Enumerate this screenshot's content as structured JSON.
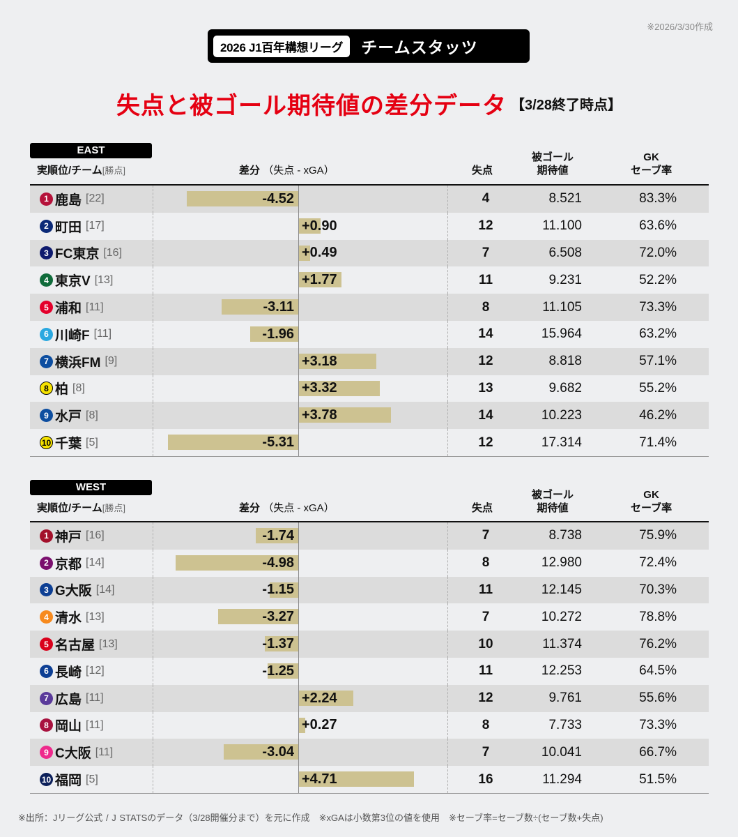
{
  "created_note": "※2026/3/30作成",
  "banner": {
    "league": "2026 J1百年構想リーグ",
    "label": "チームスタッツ"
  },
  "title": {
    "main": "失点と被ゴール期待値の差分データ",
    "sub": "【3/28終了時点】"
  },
  "columns": {
    "team": "実順位/チーム",
    "team_sub": "[勝点]",
    "diff": "差分",
    "diff_sub": "（失点 - xGA）",
    "ga": "失点",
    "xga_line1": "被ゴール",
    "xga_line2": "期待値",
    "save_line1": "GK",
    "save_line2": "セーブ率"
  },
  "colors": {
    "bar": "#cdc291",
    "title_red": "#e50012",
    "row_shade": "#dcdcdc",
    "background": "#eeeff1"
  },
  "east": {
    "label": "EAST",
    "teams": [
      {
        "rank": "1",
        "name": "鹿島",
        "points": "[22]",
        "badge": "#b5123a",
        "diff": -4.52,
        "diff_label": "-4.52",
        "ga": "4",
        "xga": "8.521",
        "save": "83.3%"
      },
      {
        "rank": "2",
        "name": "町田",
        "points": "[17]",
        "badge": "#0b2a78",
        "diff": 0.9,
        "diff_label": "+0.90",
        "ga": "12",
        "xga": "11.100",
        "save": "63.6%"
      },
      {
        "rank": "3",
        "name": "FC東京",
        "points": "[16]",
        "badge": "#0e1a6e",
        "diff": 0.49,
        "diff_label": "+0.49",
        "ga": "7",
        "xga": "6.508",
        "save": "72.0%"
      },
      {
        "rank": "4",
        "name": "東京V",
        "points": "[13]",
        "badge": "#0f6b3a",
        "diff": 1.77,
        "diff_label": "+1.77",
        "ga": "11",
        "xga": "9.231",
        "save": "52.2%"
      },
      {
        "rank": "5",
        "name": "浦和",
        "points": "[11]",
        "badge": "#e4002b",
        "diff": -3.11,
        "diff_label": "-3.11",
        "ga": "8",
        "xga": "11.105",
        "save": "73.3%"
      },
      {
        "rank": "6",
        "name": "川崎F",
        "points": "[11]",
        "badge": "#2aa8e0",
        "diff": -1.96,
        "diff_label": "-1.96",
        "ga": "14",
        "xga": "15.964",
        "save": "63.2%"
      },
      {
        "rank": "7",
        "name": "横浜FM",
        "points": "[9]",
        "badge": "#0d4ea0",
        "diff": 3.18,
        "diff_label": "+3.18",
        "ga": "12",
        "xga": "8.818",
        "save": "57.1%"
      },
      {
        "rank": "8",
        "name": "柏",
        "points": "[8]",
        "badge": "#f6e300",
        "badge_style": "yellow",
        "diff": 3.32,
        "diff_label": "+3.32",
        "ga": "13",
        "xga": "9.682",
        "save": "55.2%"
      },
      {
        "rank": "9",
        "name": "水戸",
        "points": "[8]",
        "badge": "#0d4ea0",
        "diff": 3.78,
        "diff_label": "+3.78",
        "ga": "14",
        "xga": "10.223",
        "save": "46.2%"
      },
      {
        "rank": "10",
        "name": "千葉",
        "points": "[5]",
        "badge": "#f6e300",
        "badge_style": "yellow",
        "diff": -5.31,
        "diff_label": "-5.31",
        "ga": "12",
        "xga": "17.314",
        "save": "71.4%"
      }
    ]
  },
  "west": {
    "label": "WEST",
    "teams": [
      {
        "rank": "1",
        "name": "神戸",
        "points": "[16]",
        "badge": "#a3102a",
        "diff": -1.74,
        "diff_label": "-1.74",
        "ga": "7",
        "xga": "8.738",
        "save": "75.9%"
      },
      {
        "rank": "2",
        "name": "京都",
        "points": "[14]",
        "badge": "#7a0f6e",
        "diff": -4.98,
        "diff_label": "-4.98",
        "ga": "8",
        "xga": "12.980",
        "save": "72.4%"
      },
      {
        "rank": "3",
        "name": "G大阪",
        "points": "[14]",
        "badge": "#0d3f94",
        "diff": -1.15,
        "diff_label": "-1.15",
        "ga": "11",
        "xga": "12.145",
        "save": "70.3%"
      },
      {
        "rank": "4",
        "name": "清水",
        "points": "[13]",
        "badge": "#f78a1e",
        "diff": -3.27,
        "diff_label": "-3.27",
        "ga": "7",
        "xga": "10.272",
        "save": "78.8%"
      },
      {
        "rank": "5",
        "name": "名古屋",
        "points": "[13]",
        "badge": "#d9001b",
        "diff": -1.37,
        "diff_label": "-1.37",
        "ga": "10",
        "xga": "11.374",
        "save": "76.2%"
      },
      {
        "rank": "6",
        "name": "長崎",
        "points": "[12]",
        "badge": "#0d3f94",
        "diff": -1.25,
        "diff_label": "-1.25",
        "ga": "11",
        "xga": "12.253",
        "save": "64.5%"
      },
      {
        "rank": "7",
        "name": "広島",
        "points": "[11]",
        "badge": "#5a3a9a",
        "diff": 2.24,
        "diff_label": "+2.24",
        "ga": "12",
        "xga": "9.761",
        "save": "55.6%"
      },
      {
        "rank": "8",
        "name": "岡山",
        "points": "[11]",
        "badge": "#a8123f",
        "diff": 0.27,
        "diff_label": "+0.27",
        "ga": "8",
        "xga": "7.733",
        "save": "73.3%"
      },
      {
        "rank": "9",
        "name": "C大阪",
        "points": "[11]",
        "badge": "#ee2a8c",
        "diff": -3.04,
        "diff_label": "-3.04",
        "ga": "7",
        "xga": "10.041",
        "save": "66.7%"
      },
      {
        "rank": "10",
        "name": "福岡",
        "points": "[5]",
        "badge": "#0b1f5a",
        "diff": 4.71,
        "diff_label": "+4.71",
        "ga": "16",
        "xga": "11.294",
        "save": "51.5%"
      }
    ]
  },
  "footnote": "※出所：Jリーグ公式 / J STATSのデータ（3/28開催分まで）を元に作成　※xGAは小数第3位の値を使用　※セーブ率=セーブ数÷(セーブ数+失点)",
  "chart_data": [
    {
      "type": "bar",
      "orientation": "horizontal",
      "title": "EAST 差分（失点 - xGA）",
      "categories": [
        "鹿島",
        "町田",
        "FC東京",
        "東京V",
        "浦和",
        "川崎F",
        "横浜FM",
        "柏",
        "水戸",
        "千葉"
      ],
      "series": [
        {
          "name": "差分（失点 - xGA）",
          "values": [
            -4.52,
            0.9,
            0.49,
            1.77,
            -3.11,
            -1.96,
            3.18,
            3.32,
            3.78,
            -5.31
          ]
        },
        {
          "name": "失点",
          "values": [
            4,
            12,
            7,
            11,
            8,
            14,
            12,
            13,
            14,
            12
          ]
        },
        {
          "name": "被ゴール期待値",
          "values": [
            8.521,
            11.1,
            6.508,
            9.231,
            11.105,
            15.964,
            8.818,
            9.682,
            10.223,
            17.314
          ]
        },
        {
          "name": "GKセーブ率(%)",
          "values": [
            83.3,
            63.6,
            72.0,
            52.2,
            73.3,
            63.2,
            57.1,
            55.2,
            46.2,
            71.4
          ]
        },
        {
          "name": "勝点",
          "values": [
            22,
            17,
            16,
            13,
            11,
            11,
            9,
            8,
            8,
            5
          ]
        }
      ],
      "xlim": [
        -6,
        6
      ]
    },
    {
      "type": "bar",
      "orientation": "horizontal",
      "title": "WEST 差分（失点 - xGA）",
      "categories": [
        "神戸",
        "京都",
        "G大阪",
        "清水",
        "名古屋",
        "長崎",
        "広島",
        "岡山",
        "C大阪",
        "福岡"
      ],
      "series": [
        {
          "name": "差分（失点 - xGA）",
          "values": [
            -1.74,
            -4.98,
            -1.15,
            -3.27,
            -1.37,
            -1.25,
            2.24,
            0.27,
            -3.04,
            4.71
          ]
        },
        {
          "name": "失点",
          "values": [
            7,
            8,
            11,
            7,
            10,
            11,
            12,
            8,
            7,
            16
          ]
        },
        {
          "name": "被ゴール期待値",
          "values": [
            8.738,
            12.98,
            12.145,
            10.272,
            11.374,
            12.253,
            9.761,
            7.733,
            10.041,
            11.294
          ]
        },
        {
          "name": "GKセーブ率(%)",
          "values": [
            75.9,
            72.4,
            70.3,
            78.8,
            76.2,
            64.5,
            55.6,
            73.3,
            66.7,
            51.5
          ]
        },
        {
          "name": "勝点",
          "values": [
            16,
            14,
            14,
            13,
            13,
            12,
            11,
            11,
            11,
            5
          ]
        }
      ],
      "xlim": [
        -6,
        6
      ]
    }
  ]
}
